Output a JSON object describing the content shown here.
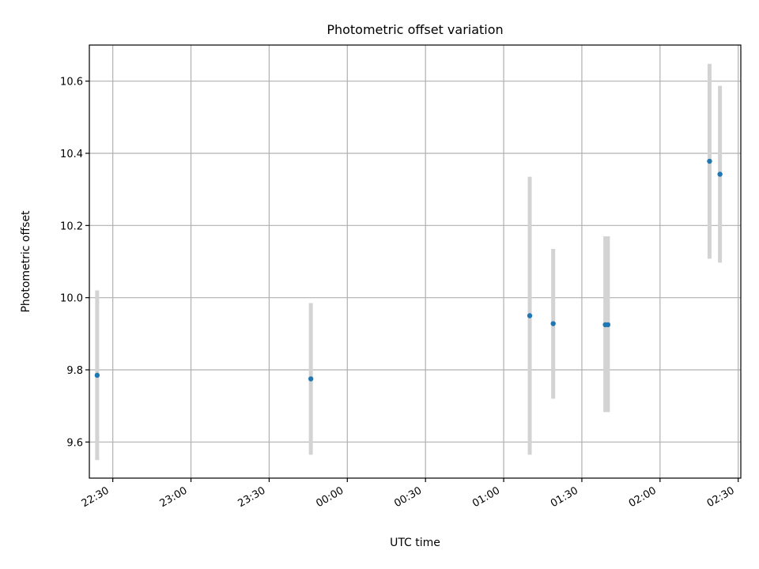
{
  "chart_data": {
    "type": "scatter",
    "title": "Photometric offset variation",
    "xlabel": "UTC time",
    "ylabel": "Photometric offset",
    "x_axis_type": "time",
    "xlim": [
      "22:21",
      "02:31"
    ],
    "ylim": [
      9.5,
      10.7
    ],
    "x_ticks": [
      "22:30",
      "23:00",
      "23:30",
      "00:00",
      "00:30",
      "01:00",
      "01:30",
      "02:00",
      "02:30"
    ],
    "y_ticks": [
      9.6,
      9.8,
      10.0,
      10.2,
      10.4,
      10.6
    ],
    "grid": true,
    "legend": "none",
    "point_color": "#1f77b4",
    "errorbar_color": "#d3d3d3",
    "points": [
      {
        "x": "22:24",
        "y": 9.785,
        "ymin": 9.55,
        "ymax": 10.02
      },
      {
        "x": "23:46",
        "y": 9.775,
        "ymin": 9.565,
        "ymax": 9.985
      },
      {
        "x": "01:10",
        "y": 9.95,
        "ymin": 9.565,
        "ymax": 10.335
      },
      {
        "x": "01:19",
        "y": 9.928,
        "ymin": 9.72,
        "ymax": 10.135
      },
      {
        "x": "01:39",
        "y": 9.925,
        "ymin": 9.683,
        "ymax": 10.17
      },
      {
        "x": "01:40",
        "y": 9.925,
        "ymin": 9.683,
        "ymax": 10.17
      },
      {
        "x": "02:19",
        "y": 10.378,
        "ymin": 10.108,
        "ymax": 10.648
      },
      {
        "x": "02:23",
        "y": 10.342,
        "ymin": 10.097,
        "ymax": 10.587
      }
    ]
  }
}
